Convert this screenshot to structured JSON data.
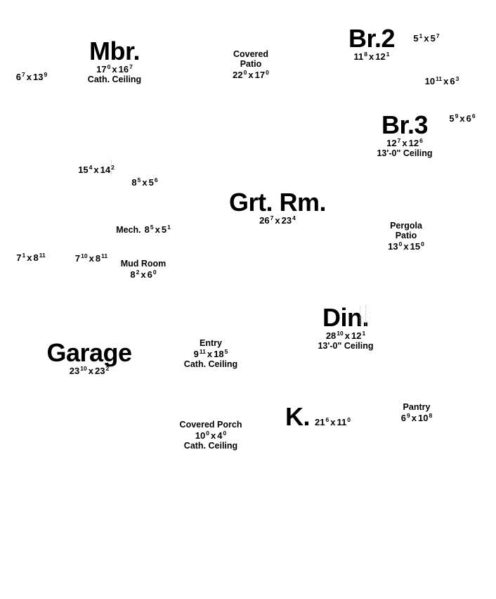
{
  "text": {
    "by": "x"
  },
  "rooms": {
    "mbr": {
      "name": "Mbr.",
      "dim": {
        "a": "17",
        "asup": "0",
        "b": "16",
        "bsup": "7"
      },
      "note": "Cath. Ceiling"
    },
    "br2": {
      "name": "Br.2",
      "dim": {
        "a": "11",
        "asup": "8",
        "b": "12",
        "bsup": "1"
      }
    },
    "br3": {
      "name": "Br.3",
      "dim": {
        "a": "12",
        "asup": "7",
        "b": "12",
        "bsup": "6"
      },
      "note": "13'-0\" Ceiling"
    },
    "grt_rm": {
      "name": "Grt. Rm.",
      "dim": {
        "a": "26",
        "asup": "7",
        "b": "23",
        "bsup": "4"
      }
    },
    "din": {
      "name": "Din.",
      "dim": {
        "a": "28",
        "asup": "10",
        "b": "12",
        "bsup": "1"
      },
      "note": "13'-0\" Ceiling"
    },
    "garage": {
      "name": "Garage",
      "dim": {
        "a": "23",
        "asup": "10",
        "b": "23",
        "bsup": "2"
      }
    },
    "kitchen": {
      "name": "K.",
      "dim": {
        "a": "21",
        "asup": "6",
        "b": "11",
        "bsup": "0"
      }
    },
    "covered_patio": {
      "title_line1": "Covered",
      "title_line2": "Patio",
      "dim": {
        "a": "22",
        "asup": "0",
        "b": "17",
        "bsup": "0"
      }
    },
    "pergola_patio": {
      "title_line1": "Pergola",
      "title_line2": "Patio",
      "dim": {
        "a": "13",
        "asup": "0",
        "b": "15",
        "bsup": "0"
      }
    },
    "entry": {
      "title": "Entry",
      "dim": {
        "a": "9",
        "asup": "11",
        "b": "18",
        "bsup": "5"
      },
      "note": "Cath. Ceiling"
    },
    "mud_room": {
      "title": "Mud Room",
      "dim": {
        "a": "8",
        "asup": "2",
        "b": "6",
        "bsup": "0"
      }
    },
    "mech": {
      "title": "Mech.",
      "dim": {
        "a": "8",
        "asup": "5",
        "b": "5",
        "bsup": "1"
      }
    },
    "pantry": {
      "title": "Pantry",
      "dim": {
        "a": "6",
        "asup": "9",
        "b": "10",
        "bsup": "8"
      }
    },
    "covered_porch": {
      "title": "Covered Porch",
      "dim": {
        "a": "10",
        "asup": "0",
        "b": "4",
        "bsup": "0"
      },
      "note": "Cath. Ceiling"
    }
  },
  "unlabeled_dimensions": [
    {
      "a": "6",
      "asup": "7",
      "b": "13",
      "bsup": "9"
    },
    {
      "a": "5",
      "asup": "1",
      "b": "5",
      "bsup": "7"
    },
    {
      "a": "10",
      "asup": "11",
      "b": "6",
      "bsup": "3"
    },
    {
      "a": "5",
      "asup": "9",
      "b": "6",
      "bsup": "6"
    },
    {
      "a": "15",
      "asup": "4",
      "b": "14",
      "bsup": "2"
    },
    {
      "a": "8",
      "asup": "5",
      "b": "5",
      "bsup": "6"
    },
    {
      "a": "7",
      "asup": "1",
      "b": "8",
      "bsup": "11"
    },
    {
      "a": "7",
      "asup": "10",
      "b": "8",
      "bsup": "11"
    }
  ],
  "colors": {
    "background": "#ffffff",
    "text": "#000000",
    "faint_line": "#c6c6c6"
  }
}
